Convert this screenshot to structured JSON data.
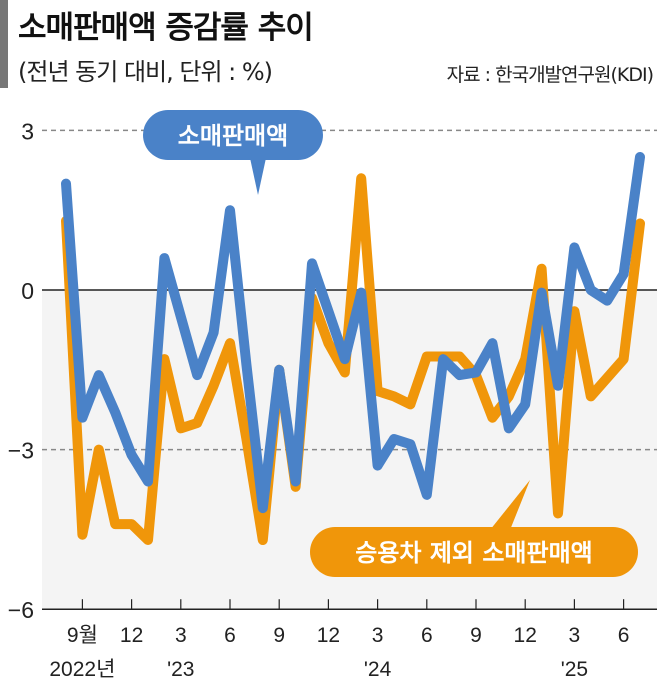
{
  "header": {
    "title": "소매판매액 증감률 추이",
    "subtitle": "(전년 동기 대비, 단위 : %)",
    "source": "자료 : 한국개발연구원(KDI)"
  },
  "chart_data": {
    "type": "line",
    "title": "소매판매액 증감률 추이",
    "subtitle": "(전년 동기 대비, 단위 : %)",
    "ylim": [
      -6,
      3
    ],
    "yticks": [
      "3",
      "0",
      "−3",
      "−6"
    ],
    "ytick_values": [
      3,
      0,
      -3,
      -6
    ],
    "grid": "dashed at 3 and −3, solid at 0",
    "x_start": "2022-08",
    "x_end": "2025-07",
    "xticks": [
      {
        "month": "2022-09",
        "label": "9월",
        "year_label": "2022년"
      },
      {
        "month": "2022-12",
        "label": "12",
        "year_label": ""
      },
      {
        "month": "2023-03",
        "label": "3",
        "year_label": "'23"
      },
      {
        "month": "2023-06",
        "label": "6",
        "year_label": ""
      },
      {
        "month": "2023-09",
        "label": "9",
        "year_label": ""
      },
      {
        "month": "2023-12",
        "label": "12",
        "year_label": ""
      },
      {
        "month": "2024-03",
        "label": "3",
        "year_label": "'24"
      },
      {
        "month": "2024-06",
        "label": "6",
        "year_label": ""
      },
      {
        "month": "2024-09",
        "label": "9",
        "year_label": ""
      },
      {
        "month": "2024-12",
        "label": "12",
        "year_label": ""
      },
      {
        "month": "2025-03",
        "label": "3",
        "year_label": "'25"
      },
      {
        "month": "2025-06",
        "label": "6",
        "year_label": ""
      }
    ],
    "series": [
      {
        "name": "승용차 제외 소매판매액",
        "color": "#f0960a",
        "values": [
          1.3,
          -4.6,
          -3.0,
          -4.4,
          -4.4,
          -4.7,
          -1.3,
          -2.6,
          -2.5,
          -1.8,
          -1.0,
          -2.8,
          -4.7,
          -1.5,
          -3.7,
          -0.15,
          -1.0,
          -1.55,
          2.1,
          -1.9,
          -2.0,
          -2.15,
          -1.25,
          -1.25,
          -1.25,
          -1.6,
          -2.4,
          -2.0,
          -1.3,
          0.4,
          -4.2,
          -0.4,
          -2.0,
          -1.65,
          -1.3,
          1.25
        ]
      },
      {
        "name": "소매판매액",
        "color": "#4a82c8",
        "values": [
          2.0,
          -2.4,
          -1.6,
          -2.3,
          -3.1,
          -3.6,
          0.6,
          -0.5,
          -1.6,
          -0.8,
          1.5,
          -1.4,
          -4.1,
          -1.5,
          -3.6,
          0.5,
          -0.4,
          -1.3,
          -0.05,
          -3.3,
          -2.8,
          -2.9,
          -3.85,
          -1.3,
          -1.6,
          -1.55,
          -1.0,
          -2.6,
          -2.15,
          -0.05,
          -1.8,
          0.8,
          0.0,
          -0.2,
          0.3,
          2.5
        ]
      }
    ]
  }
}
